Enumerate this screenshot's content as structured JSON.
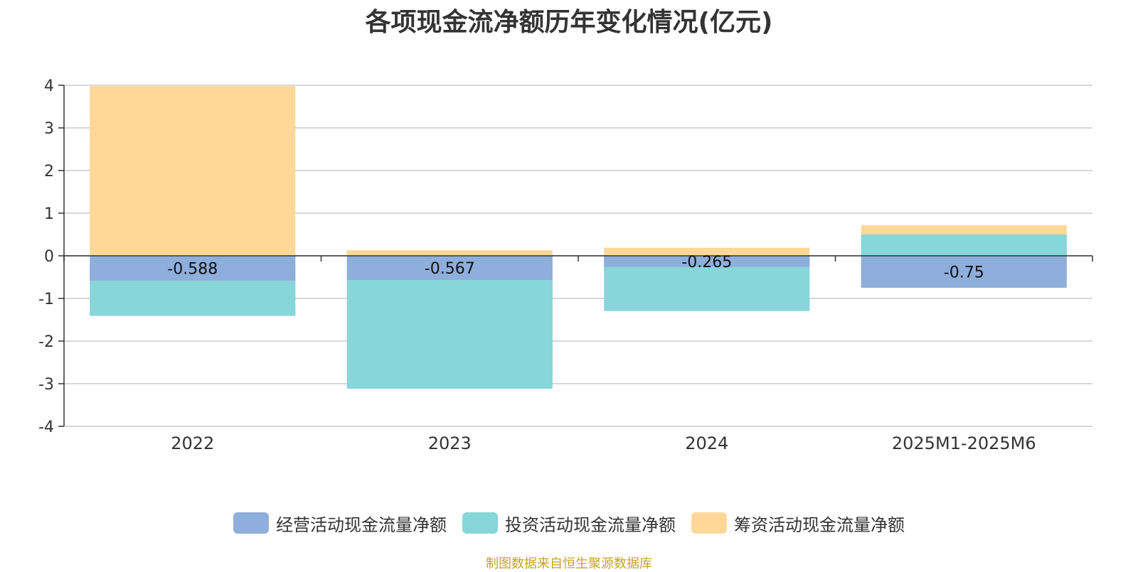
{
  "chart_data": {
    "type": "bar",
    "stacked": true,
    "title": "各项现金流净额历年变化情况(亿元)",
    "categories": [
      "2022",
      "2023",
      "2024",
      "2025M1-2025M6"
    ],
    "series": [
      {
        "name": "经营活动现金流量净额",
        "color": "#8eaedc",
        "values": [
          -0.588,
          -0.567,
          -0.265,
          -0.75
        ]
      },
      {
        "name": "投资活动现金流量净额",
        "color": "#87d6d9",
        "values": [
          -0.82,
          -2.55,
          -1.03,
          0.5
        ]
      },
      {
        "name": "筹资活动现金流量净额",
        "color": "#ffd898",
        "values": [
          3.98,
          0.13,
          0.19,
          0.22
        ]
      }
    ],
    "data_labels": [
      "-0.588",
      "-0.567",
      "-0.265",
      "-0.75"
    ],
    "yticks": [
      "4",
      "3",
      "2",
      "1",
      "0",
      "-1",
      "-2",
      "-3",
      "-4"
    ],
    "ylim": [
      -4,
      4
    ],
    "grid": true,
    "legend_position": "bottom"
  },
  "source_note": "制图数据来自恒生聚源数据库"
}
